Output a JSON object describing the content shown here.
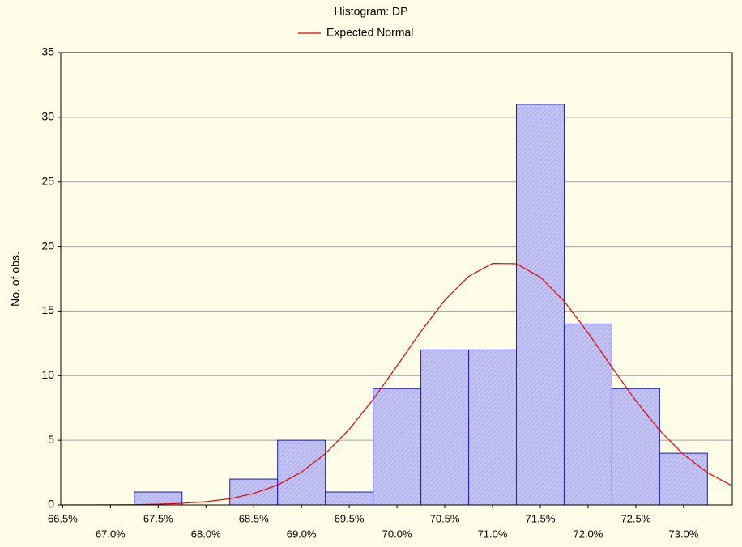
{
  "chart_data": {
    "type": "histogram",
    "title": "Histogram: DP",
    "ylabel": "No. of obs.",
    "bins": [
      66.75,
      67.25,
      67.75,
      68.25,
      68.75,
      69.25,
      69.75,
      70.25,
      70.75,
      71.25,
      71.75,
      72.25,
      72.75,
      73.25
    ],
    "values": [
      0,
      1,
      0,
      2,
      5,
      1,
      9,
      12,
      12,
      31,
      14,
      9,
      4
    ],
    "color": "#c4c4f4",
    "edge_color": "#1c1cc0",
    "xlim": [
      66.48,
      73.51
    ],
    "xticks": [
      {
        "value": 66.5,
        "label": "66.5%"
      },
      {
        "value": 67.0,
        "label": "67.0%"
      },
      {
        "value": 67.5,
        "label": "67.5%"
      },
      {
        "value": 68.0,
        "label": "68.0%"
      },
      {
        "value": 68.5,
        "label": "68.5%"
      },
      {
        "value": 69.0,
        "label": "69.0%"
      },
      {
        "value": 69.5,
        "label": "69.5%"
      },
      {
        "value": 70.0,
        "label": "70.0%"
      },
      {
        "value": 70.5,
        "label": "70.5%"
      },
      {
        "value": 71.0,
        "label": "71.0%"
      },
      {
        "value": 71.5,
        "label": "71.5%"
      },
      {
        "value": 72.0,
        "label": "72.0%"
      },
      {
        "value": 72.5,
        "label": "72.5%"
      },
      {
        "value": 73.0,
        "label": "73.0%"
      }
    ],
    "ylim": [
      0,
      35
    ],
    "yticks": [
      0,
      5,
      10,
      15,
      20,
      25,
      30,
      35
    ],
    "grid": true,
    "legend": "top",
    "series": [
      {
        "name": "Expected Normal",
        "type": "line",
        "color": "#e00000",
        "x": [
          66.5,
          66.75,
          67.0,
          67.25,
          67.5,
          67.75,
          68.0,
          68.25,
          68.5,
          68.75,
          69.0,
          69.25,
          69.5,
          69.75,
          70.0,
          70.25,
          70.5,
          70.75,
          71.0,
          71.25,
          71.5,
          71.75,
          72.0,
          72.25,
          72.5,
          72.75,
          73.0,
          73.25,
          73.5
        ],
        "values": [
          0.0,
          0.004,
          0.01,
          0.02,
          0.06,
          0.12,
          0.25,
          0.48,
          0.89,
          1.54,
          2.54,
          3.97,
          5.85,
          8.16,
          10.76,
          13.42,
          15.84,
          17.69,
          18.68,
          18.66,
          17.63,
          15.76,
          13.32,
          10.65,
          8.06,
          5.76,
          3.9,
          2.5,
          1.51
        ]
      }
    ]
  }
}
